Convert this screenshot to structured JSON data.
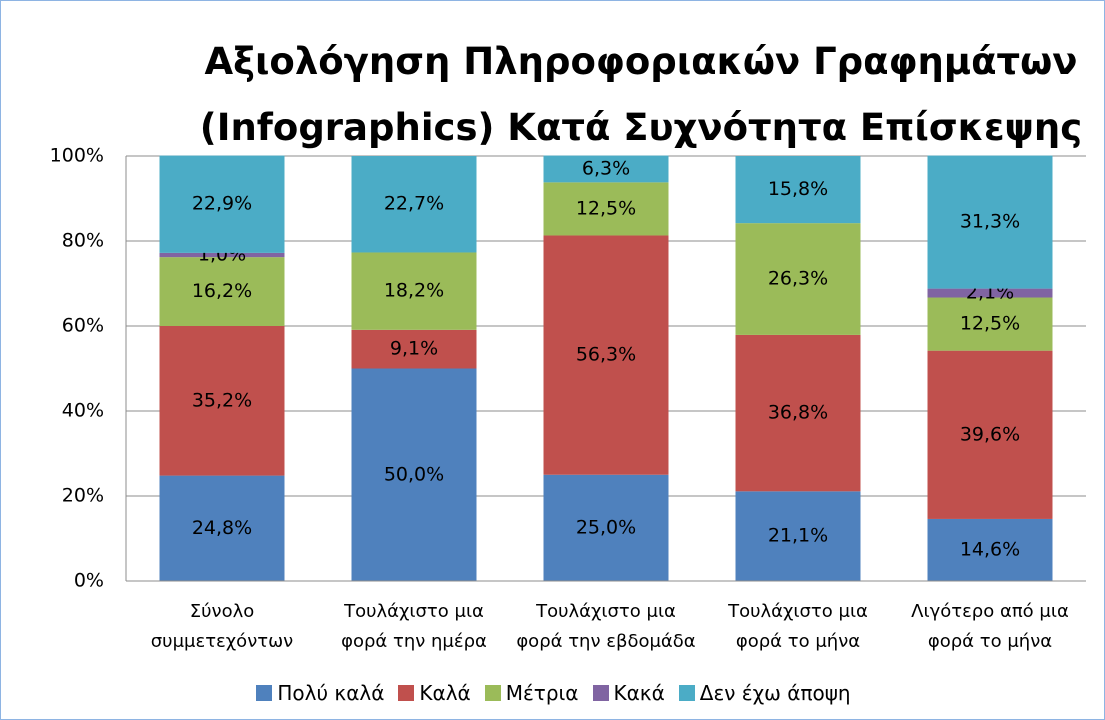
{
  "chart_data": {
    "type": "stacked_bar",
    "title": "Αξιολόγηση Πληροφοριακών Γραφημάτων (Infographics) Κατά Συχνότητα Επίσκεψης",
    "categories": [
      "Σύνολο συμμετεχόντων",
      "Τουλάχιστο μια φορά την ημέρα",
      "Τουλάχιστο μια φορά την εβδομάδα",
      "Τουλάχιστο μια φορά το μήνα",
      "Λιγότερο από μια φορά το μήνα"
    ],
    "series": [
      {
        "name": "Πολύ καλά",
        "color": "#4f81bd",
        "values": [
          24.8,
          50.0,
          25.0,
          21.1,
          14.6
        ],
        "value_labels": [
          "24,8%",
          "50,0%",
          "25,0%",
          "21,1%",
          "14,6%"
        ]
      },
      {
        "name": "Καλά",
        "color": "#c0504d",
        "values": [
          35.2,
          9.1,
          56.3,
          36.8,
          39.6
        ],
        "value_labels": [
          "35,2%",
          "9,1%",
          "56,3%",
          "36,8%",
          "39,6%"
        ]
      },
      {
        "name": "Μέτρια",
        "color": "#9bbb59",
        "values": [
          16.2,
          18.2,
          12.5,
          26.3,
          12.5
        ],
        "value_labels": [
          "16,2%",
          "18,2%",
          "12,5%",
          "26,3%",
          "12,5%"
        ]
      },
      {
        "name": "Κακά",
        "color": "#8064a2",
        "values": [
          1.0,
          null,
          null,
          null,
          2.1
        ],
        "value_labels": [
          "1,0%",
          null,
          null,
          null,
          "2,1%"
        ]
      },
      {
        "name": "Δεν έχω άποψη",
        "color": "#4bacc6",
        "values": [
          22.9,
          22.7,
          6.3,
          15.8,
          31.3
        ],
        "value_labels": [
          "22,9%",
          "22,7%",
          "6,3%",
          "15,8%",
          "31,3%"
        ]
      }
    ],
    "ylim": [
      0,
      100
    ],
    "yticks": [
      {
        "value": 0,
        "label": "0%"
      },
      {
        "value": 20,
        "label": "20%"
      },
      {
        "value": 40,
        "label": "40%"
      },
      {
        "value": 60,
        "label": "60%"
      },
      {
        "value": 80,
        "label": "80%"
      },
      {
        "value": 100,
        "label": "100%"
      }
    ],
    "grid": true,
    "legend": "bottom"
  }
}
